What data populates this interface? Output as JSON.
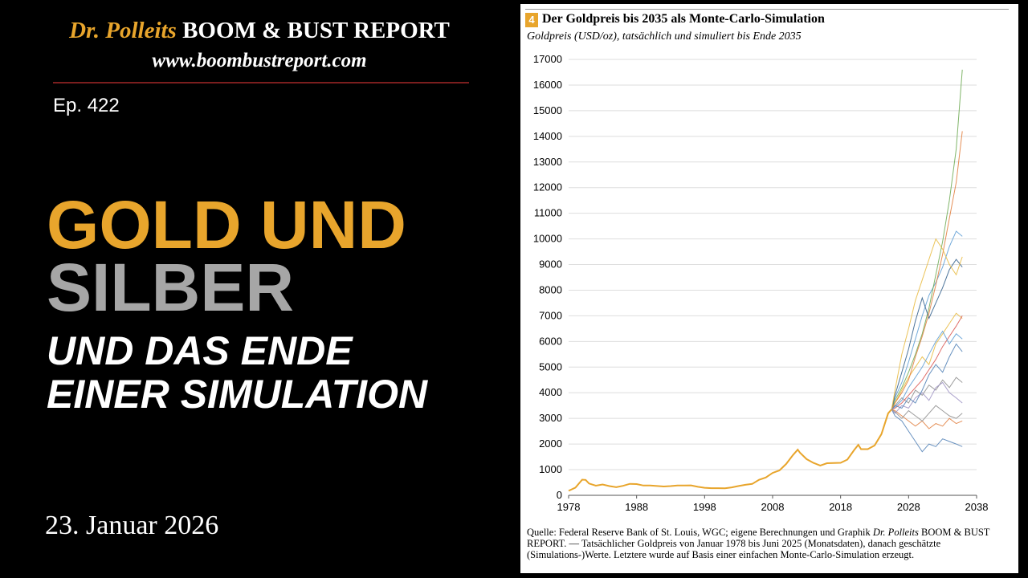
{
  "header": {
    "brand_doctor": "Dr. Polleits",
    "brand_report": "BOOM & BUST REPORT",
    "url": "www.boombustreport.com",
    "episode": "Ep. 422"
  },
  "headline": {
    "line1": "GOLD UND",
    "line2": "SILBER",
    "line3": "UND DAS ENDE",
    "line4": "EINER SIMULATION"
  },
  "date": "23. Januar 2026",
  "colors": {
    "gold": "#e8a52c",
    "silver": "#a6a6a6",
    "rule": "#7b1e1e",
    "sim_palette": [
      "#4f7fb5",
      "#e07b39",
      "#8c8c8c",
      "#e8b93b",
      "#5a9bd3",
      "#6aa84f",
      "#d9534f",
      "#9b8fc2",
      "#2f5d8a"
    ]
  },
  "chart": {
    "number": "4",
    "title": "Der Goldpreis bis 2035 als Monte-Carlo-Simulation",
    "subtitle": "Goldpreis (USD/oz), tatsächlich und simuliert bis Ende 2035",
    "source_pre": "Quelle: Federal Reserve Bank of St. Louis, WGC; eigene Berechnungen und Graphik",
    "source_em": "Dr. Polleits",
    "source_post": "BOOM & BUST REPORT. — Tatsächlicher Goldpreis von Januar 1978 bis Juni 2025 (Monatsdaten), danach geschätzte (Simulations-)Werte. Letztere wurde auf Basis einer einfachen Monte-Carlo-Simulation erzeugt."
  },
  "chart_data": {
    "type": "line",
    "title": "Der Goldpreis bis 2035 als Monte-Carlo-Simulation",
    "subtitle": "Goldpreis (USD/oz), tatsächlich und simuliert bis Ende 2035",
    "xlabel": "",
    "ylabel": "",
    "xlim": [
      1978,
      2038
    ],
    "ylim": [
      0,
      17000
    ],
    "xticks": [
      1978,
      1988,
      1998,
      2008,
      2018,
      2028,
      2038
    ],
    "yticks": [
      0,
      1000,
      2000,
      3000,
      4000,
      5000,
      6000,
      7000,
      8000,
      9000,
      10000,
      11000,
      12000,
      13000,
      14000,
      15000,
      16000,
      17000
    ],
    "grid": true,
    "legend": "none",
    "actual": {
      "x": [
        1978,
        1979,
        1980,
        1980.5,
        1981,
        1982,
        1983,
        1984,
        1985,
        1986,
        1987,
        1988,
        1989,
        1990,
        1991,
        1992,
        1993,
        1994,
        1995,
        1996,
        1997,
        1998,
        1999,
        2000,
        2001,
        2002,
        2003,
        2004,
        2005,
        2006,
        2007,
        2008,
        2009,
        2010,
        2011,
        2011.7,
        2012,
        2013,
        2014,
        2015,
        2016,
        2017,
        2018,
        2019,
        2020,
        2020.6,
        2021,
        2022,
        2023,
        2024,
        2025,
        2025.5
      ],
      "values": [
        175,
        300,
        612,
        600,
        460,
        375,
        424,
        360,
        317,
        368,
        447,
        437,
        381,
        383,
        362,
        343,
        360,
        384,
        384,
        388,
        331,
        294,
        279,
        279,
        271,
        310,
        363,
        409,
        445,
        604,
        695,
        872,
        972,
        1225,
        1572,
        1780,
        1669,
        1411,
        1266,
        1160,
        1251,
        1257,
        1268,
        1393,
        1770,
        1970,
        1800,
        1800,
        1943,
        2386,
        3200,
        3350
      ]
    },
    "simulations": {
      "x": [
        2025.5,
        2026,
        2027,
        2028,
        2029,
        2030,
        2031,
        2032,
        2033,
        2034,
        2035,
        2035.9
      ],
      "series": [
        {
          "values": [
            3350,
            3100,
            2900,
            2500,
            2100,
            1700,
            2000,
            1900,
            2200,
            2100,
            2000,
            1900
          ]
        },
        {
          "values": [
            3350,
            3300,
            3100,
            2900,
            2700,
            2900,
            2600,
            2800,
            2700,
            3000,
            2800,
            2900
          ]
        },
        {
          "values": [
            3350,
            3500,
            3800,
            3600,
            4100,
            3900,
            4300,
            4100,
            4500,
            4200,
            4600,
            4400
          ]
        },
        {
          "values": [
            3350,
            3600,
            4100,
            4600,
            5000,
            5400,
            5100,
            5900,
            6300,
            6700,
            7100,
            6900
          ]
        },
        {
          "values": [
            3350,
            3800,
            4400,
            5200,
            6100,
            7000,
            7800,
            8300,
            8900,
            9700,
            10300,
            10100
          ]
        },
        {
          "values": [
            3350,
            3700,
            4200,
            4800,
            5500,
            6300,
            7300,
            8600,
            9900,
            11500,
            13500,
            16600
          ]
        },
        {
          "values": [
            3350,
            3400,
            3600,
            3900,
            4200,
            4500,
            4900,
            5300,
            5800,
            6200,
            6600,
            7000
          ]
        },
        {
          "values": [
            3350,
            3200,
            3500,
            3400,
            3800,
            4000,
            3700,
            4200,
            4400,
            4000,
            3800,
            3600
          ]
        },
        {
          "values": [
            3350,
            3900,
            4800,
            5700,
            6800,
            7700,
            6900,
            7500,
            8100,
            8800,
            9200,
            8900
          ]
        },
        {
          "values": [
            3350,
            3500,
            3400,
            3800,
            3600,
            4100,
            4700,
            5100,
            4800,
            5400,
            5900,
            5600
          ]
        },
        {
          "values": [
            3350,
            3600,
            4000,
            4500,
            5400,
            6200,
            7100,
            8200,
            9400,
            10800,
            12200,
            14200
          ]
        },
        {
          "values": [
            3350,
            3250,
            3000,
            3300,
            3100,
            2900,
            3200,
            3500,
            3300,
            3100,
            3000,
            3200
          ]
        },
        {
          "values": [
            3350,
            4100,
            5500,
            6500,
            7600,
            8400,
            9200,
            10000,
            9600,
            9000,
            8600,
            9300
          ]
        },
        {
          "values": [
            3350,
            3450,
            3700,
            4200,
            4600,
            5000,
            5500,
            6000,
            6400,
            5900,
            6300,
            6100
          ]
        }
      ]
    }
  }
}
